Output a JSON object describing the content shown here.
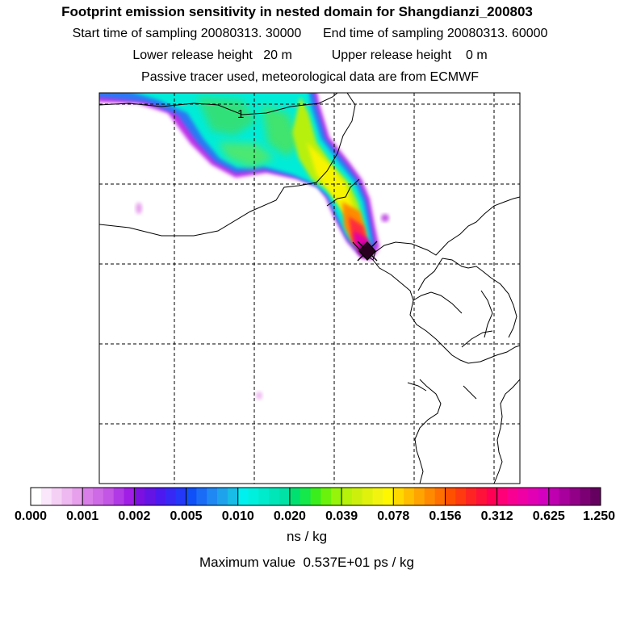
{
  "title": "Footprint emission sensitivity in nested domain for Shangdianzi_200803",
  "sampling": {
    "start_label": "Start time of sampling",
    "start_value": "20080313. 30000",
    "end_label": "End time of sampling",
    "end_value": "20080313. 60000"
  },
  "release": {
    "lower_label": "Lower release height",
    "lower_value": "20 m",
    "upper_label": "Upper release height",
    "upper_value": "0 m"
  },
  "note": "Passive tracer used, meteorological data are from ECMWF",
  "contour_label": "1",
  "colorbar": {
    "ticks": [
      "0.000",
      "0.001",
      "0.002",
      "0.005",
      "0.010",
      "0.020",
      "0.039",
      "0.078",
      "0.156",
      "0.312",
      "0.625",
      "1.250"
    ],
    "colors": [
      [
        "#ffffff",
        "#fbe7fb",
        "#f5d0f5",
        "#eeb8f0",
        "#e6a0ec"
      ],
      [
        "#d97ee8",
        "#cf6ae6",
        "#c456e6",
        "#b13ae6",
        "#a01ee6"
      ],
      [
        "#7b10e0",
        "#6414e4",
        "#4c1af0",
        "#3828f6",
        "#2438fa"
      ],
      [
        "#1050f8",
        "#1a6cf6",
        "#2088f2",
        "#1ea2ec",
        "#18bce6"
      ],
      [
        "#00f0f0",
        "#00f0de",
        "#00eacc",
        "#00e6b8",
        "#00e2a6"
      ],
      [
        "#00e070",
        "#14e84a",
        "#3aee1e",
        "#6af20c",
        "#96f40a"
      ],
      [
        "#b6f20a",
        "#ccf00c",
        "#e0f20c",
        "#f2f410",
        "#fff700"
      ],
      [
        "#ffd800",
        "#ffbe00",
        "#ffa400",
        "#ff8a00",
        "#ff7000"
      ],
      [
        "#ff5000",
        "#ff3a10",
        "#ff2424",
        "#ff123a",
        "#ff0054"
      ],
      [
        "#ff0078",
        "#f80092",
        "#ee00a4",
        "#e200b4",
        "#d400c0"
      ],
      [
        "#bf00b0",
        "#a8009c",
        "#920088",
        "#7c0074",
        "#660060"
      ]
    ]
  },
  "unit": "ns / kg",
  "max_label": "Maximum value",
  "max_value": "0.537E+01 ps / kg"
}
